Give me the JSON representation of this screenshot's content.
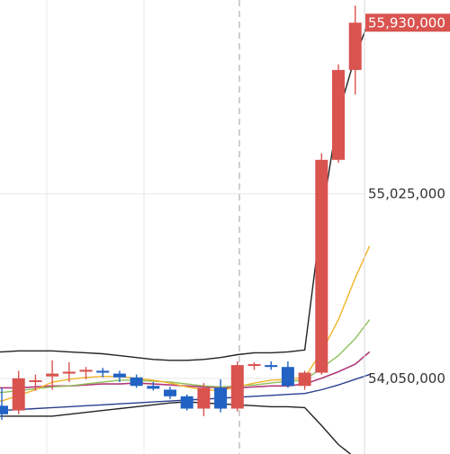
{
  "chart_data": {
    "type": "candlestick",
    "title": "",
    "xlabel": "",
    "ylabel": "",
    "ylim": [
      53650000,
      56050000
    ],
    "y_axis_ticks": [
      {
        "value": 55025000,
        "label": "55,025,000"
      },
      {
        "value": 54050000,
        "label": "54,050,000"
      }
    ],
    "last_price": {
      "value": 55930000,
      "label": "55,930,000"
    },
    "grid": true,
    "colors": {
      "up": "#d9534f",
      "down": "#2162c4",
      "grid": "#e8e8e8",
      "bollinger": "#222222",
      "ma_orange": "#f0b429",
      "ma_green": "#8fbf5a",
      "ma_magenta": "#b23a7a",
      "ma_blue": "#2b3f8f",
      "last_price_bg": "#d9534f"
    },
    "candles": [
      {
        "o": 53905000,
        "h": 54000000,
        "l": 53830000,
        "c": 53860000
      },
      {
        "o": 53880000,
        "h": 54090000,
        "l": 53860000,
        "c": 54050000
      },
      {
        "o": 54035000,
        "h": 54070000,
        "l": 53985000,
        "c": 54040000
      },
      {
        "o": 54060000,
        "h": 54145000,
        "l": 53990000,
        "c": 54075000
      },
      {
        "o": 54075000,
        "h": 54135000,
        "l": 54030000,
        "c": 54085000
      },
      {
        "o": 54085000,
        "h": 54110000,
        "l": 54045000,
        "c": 54095000
      },
      {
        "o": 54090000,
        "h": 54105000,
        "l": 54055000,
        "c": 54080000
      },
      {
        "o": 54075000,
        "h": 54090000,
        "l": 54030000,
        "c": 54055000
      },
      {
        "o": 54055000,
        "h": 54070000,
        "l": 54000000,
        "c": 54010000
      },
      {
        "o": 54010000,
        "h": 54030000,
        "l": 53985000,
        "c": 53995000
      },
      {
        "o": 53990000,
        "h": 54005000,
        "l": 53940000,
        "c": 53955000
      },
      {
        "o": 53955000,
        "h": 53965000,
        "l": 53880000,
        "c": 53890000
      },
      {
        "o": 53890000,
        "h": 54025000,
        "l": 53850000,
        "c": 54000000
      },
      {
        "o": 54000000,
        "h": 54045000,
        "l": 53870000,
        "c": 53890000
      },
      {
        "o": 53890000,
        "h": 54140000,
        "l": 53875000,
        "c": 54120000
      },
      {
        "o": 54120000,
        "h": 54135000,
        "l": 54095000,
        "c": 54125000
      },
      {
        "o": 54120000,
        "h": 54140000,
        "l": 54095000,
        "c": 54110000
      },
      {
        "o": 54110000,
        "h": 54140000,
        "l": 54000000,
        "c": 54010000
      },
      {
        "o": 54010000,
        "h": 54090000,
        "l": 53990000,
        "c": 54080000
      },
      {
        "o": 54080000,
        "h": 55240000,
        "l": 54070000,
        "c": 55205000
      },
      {
        "o": 55205000,
        "h": 55710000,
        "l": 55190000,
        "c": 55680000
      },
      {
        "o": 55680000,
        "h": 56020000,
        "l": 55550000,
        "c": 55930000
      }
    ],
    "bollinger_upper": [
      54190000,
      54195000,
      54195000,
      54195000,
      54190000,
      54185000,
      54180000,
      54170000,
      54160000,
      54150000,
      54145000,
      54145000,
      54150000,
      54160000,
      54175000,
      54185000,
      54185000,
      54190000,
      54200000,
      54900000,
      55450000,
      55750000
    ],
    "bollinger_lower": [
      53850000,
      53850000,
      53850000,
      53850000,
      53860000,
      53870000,
      53880000,
      53890000,
      53900000,
      53910000,
      53920000,
      53925000,
      53920000,
      53915000,
      53910000,
      53905000,
      53900000,
      53900000,
      53895000,
      53800000,
      53700000,
      53630000
    ],
    "ma_orange": [
      53930000,
      53960000,
      53990000,
      54030000,
      54045000,
      54055000,
      54060000,
      54060000,
      54050000,
      54040000,
      54025000,
      54005000,
      53990000,
      53985000,
      54005000,
      54025000,
      54040000,
      54045000,
      54055000,
      54190000,
      54360000,
      54580000
    ],
    "ma_green": [
      53975000,
      53985000,
      53995000,
      54005000,
      54010000,
      54020000,
      54030000,
      54040000,
      54040000,
      54035000,
      54030000,
      54020000,
      54010000,
      54005000,
      54010000,
      54015000,
      54025000,
      54035000,
      54040000,
      54105000,
      54170000,
      54260000
    ],
    "ma_magenta": [
      54000000,
      54000000,
      54005000,
      54010000,
      54010000,
      54015000,
      54020000,
      54020000,
      54025000,
      54020000,
      54015000,
      54010000,
      54005000,
      54000000,
      54000000,
      54005000,
      54010000,
      54010000,
      54020000,
      54050000,
      54085000,
      54125000
    ],
    "ma_blue": [
      53880000,
      53885000,
      53890000,
      53895000,
      53900000,
      53905000,
      53910000,
      53915000,
      53920000,
      53925000,
      53930000,
      53935000,
      53940000,
      53945000,
      53950000,
      53955000,
      53960000,
      53965000,
      53970000,
      53990000,
      54015000,
      54045000
    ]
  }
}
